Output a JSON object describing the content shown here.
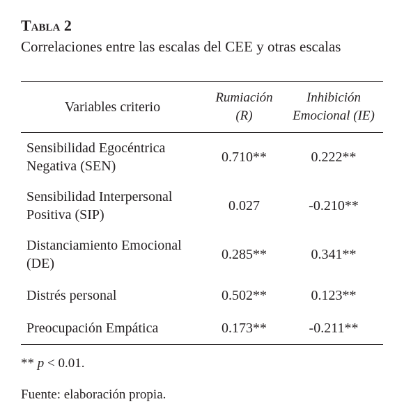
{
  "header": {
    "title": "Tabla 2",
    "subtitle": "Correlaciones entre las escalas del CEE y otras escalas"
  },
  "table": {
    "columns": [
      "Variables criterio",
      "Rumiación (R)",
      "Inhibición Emocional (IE)"
    ],
    "rows": [
      [
        "Sensibilidad Egocéntrica Negativa (SEN)",
        "0.710**",
        "0.222**"
      ],
      [
        "Sensibilidad Interpersonal Positiva (SIP)",
        "0.027",
        "-0.210**"
      ],
      [
        "Distanciamiento Emocio­nal (DE)",
        "0.285**",
        "0.341**"
      ],
      [
        "Distrés personal",
        "0.502**",
        "0.123**"
      ],
      [
        "Preocupación Empática",
        "0.173**",
        "-0.211**"
      ]
    ]
  },
  "note": {
    "stars": "**",
    "p": "p",
    "text": "< 0.01."
  },
  "source": "Fuente: elaboración propia."
}
